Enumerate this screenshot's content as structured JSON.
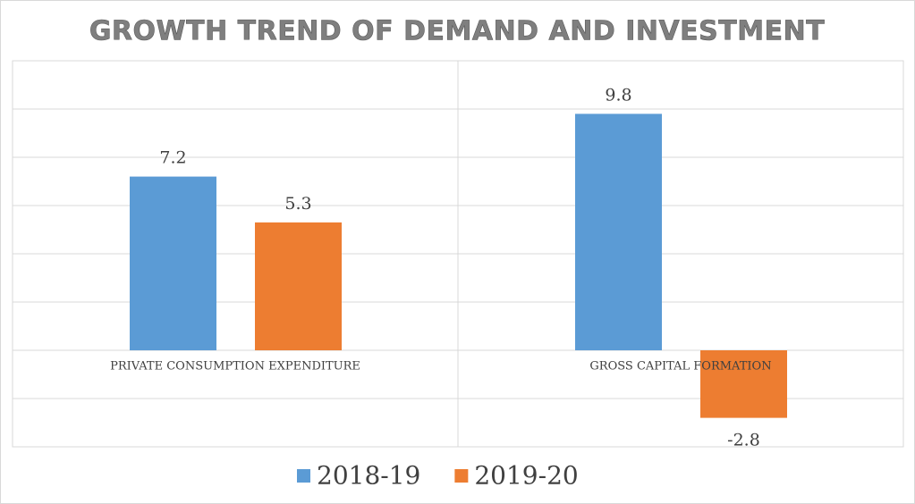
{
  "chart_data": {
    "type": "bar",
    "title": "GROWTH TREND OF DEMAND AND INVESTMENT",
    "categories": [
      "PRIVATE CONSUMPTION EXPENDITURE",
      "GROSS CAPITAL FORMATION"
    ],
    "series": [
      {
        "name": "2018-19",
        "color": "#5b9bd5",
        "values": [
          7.2,
          9.8
        ]
      },
      {
        "name": "2019-20",
        "color": "#ed7d31",
        "values": [
          5.3,
          -2.8
        ]
      }
    ],
    "ylim": [
      -4,
      12
    ],
    "yticks": [
      -4,
      -2,
      0,
      2,
      4,
      6,
      8,
      10,
      12
    ],
    "grid": true
  }
}
